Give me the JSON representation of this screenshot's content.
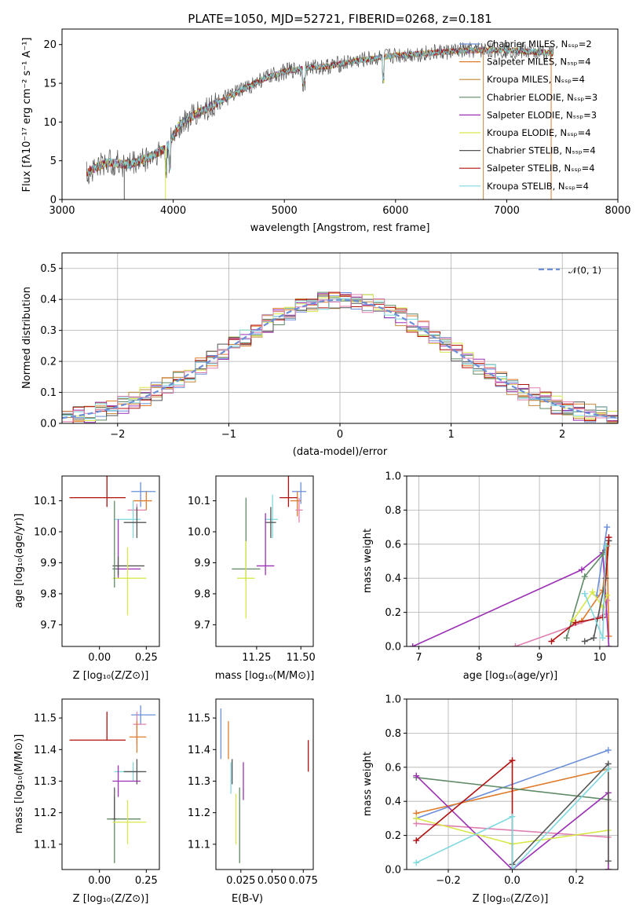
{
  "palette": [
    "#6a8fd8",
    "#e07b2a",
    "#c2873a",
    "#5f8a66",
    "#9b30b4",
    "#d8e84a",
    "#555555",
    "#b01010",
    "#7fd8e0",
    "#e080b0"
  ],
  "chart_data": [
    {
      "id": "spectrum",
      "type": "line",
      "title": "PLATE=1050, MJD=52721, FIBERID=0268, z=0.181",
      "xlabel": "wavelength [Angstrom, rest frame]",
      "ylabel": "Flux [fλ10⁻¹⁷ erg cm⁻² s⁻¹ A⁻¹]",
      "xlim": [
        3000,
        8000
      ],
      "ylim": [
        0,
        22
      ],
      "xticks": [
        "3000",
        "4000",
        "5000",
        "6000",
        "7000",
        "8000"
      ],
      "yticks": [
        "0",
        "5",
        "10",
        "15",
        "20"
      ],
      "legend_position": "top-right",
      "grid": false,
      "continuum": {
        "x": [
          3220,
          3400,
          3600,
          3800,
          3950,
          4050,
          4200,
          4400,
          4600,
          4800,
          5000,
          5200,
          5400,
          5600,
          5800,
          6000,
          6200,
          6400,
          6600,
          6800,
          7000,
          7200,
          7400
        ],
        "y": [
          3.5,
          4.8,
          4.5,
          5.5,
          6.8,
          9.5,
          11,
          12.5,
          14,
          15.5,
          16.5,
          17,
          17.2,
          17.8,
          18.2,
          18.6,
          18.8,
          19,
          19.2,
          19.3,
          19.3,
          19.1,
          18.9
        ]
      },
      "series": [
        {
          "name": "Chabrier MILES, Nₛₛₚ=2",
          "color_index": 0
        },
        {
          "name": "Salpeter MILES, Nₛₛₚ=4",
          "color_index": 1
        },
        {
          "name": "Kroupa MILES, Nₛₛₚ=4",
          "color_index": 2
        },
        {
          "name": "Chabrier ELODIE, Nₛₛₚ=3",
          "color_index": 3
        },
        {
          "name": "Salpeter ELODIE, Nₛₛₚ=3",
          "color_index": 4
        },
        {
          "name": "Kroupa ELODIE, Nₛₛₚ=4",
          "color_index": 5
        },
        {
          "name": "Chabrier STELIB, Nₛₛₚ=4",
          "color_index": 6
        },
        {
          "name": "Salpeter STELIB, Nₛₛₚ=4",
          "color_index": 7
        },
        {
          "name": "Kroupa STELIB, Nₛₛₚ=4",
          "color_index": 8
        }
      ]
    },
    {
      "id": "residuals",
      "type": "line",
      "xlabel": "(data-model)/error",
      "ylabel": "Normed distribution",
      "xlim": [
        -2.5,
        2.5
      ],
      "ylim": [
        0,
        0.55
      ],
      "xticks": [
        "−2",
        "−1",
        "0",
        "1",
        "2"
      ],
      "yticks": [
        "0.0",
        "0.1",
        "0.2",
        "0.3",
        "0.4",
        "0.5"
      ],
      "grid": true,
      "legend_position": "top-right",
      "legend": "𝒩(0, 1)"
    },
    {
      "id": "age-vs-z",
      "type": "scatter",
      "xlabel": "Z [log₁₀(Z/Z⊙)]",
      "ylabel": "age  [log₁₀(age/yr)]",
      "xlim": [
        -0.2,
        0.32
      ],
      "ylim": [
        9.63,
        10.18
      ],
      "xticks": [
        "0.00",
        "0.25"
      ],
      "yticks": [
        "9.7",
        "9.8",
        "9.9",
        "10.0",
        "10.1"
      ],
      "points": [
        {
          "x": 0.22,
          "y": 10.13,
          "xerr": [
            0.05,
            0.08
          ],
          "yerr": [
            0.05,
            0.03
          ],
          "c": 0
        },
        {
          "x": 0.25,
          "y": 10.1,
          "xerr": [
            0.07,
            0.03
          ],
          "yerr": [
            0.03,
            0.03
          ],
          "c": 1
        },
        {
          "x": 0.2,
          "y": 10.07,
          "xerr": [
            0.05,
            0.05
          ],
          "yerr": [
            0.02,
            0.02
          ],
          "c": 9
        },
        {
          "x": 0.18,
          "y": 10.04,
          "xerr": [
            0.1,
            0.04
          ],
          "yerr": [
            0.06,
            0.06
          ],
          "c": 8
        },
        {
          "x": 0.2,
          "y": 10.03,
          "xerr": [
            0.07,
            0.05
          ],
          "yerr": [
            0.05,
            0.05
          ],
          "c": 6
        },
        {
          "x": 0.04,
          "y": 10.11,
          "xerr": [
            0.2,
            0.1
          ],
          "yerr": [
            0.03,
            0.14
          ],
          "c": 7
        },
        {
          "x": 0.1,
          "y": 9.88,
          "xerr": [
            0.03,
            0.12
          ],
          "yerr": [
            0.03,
            0.16
          ],
          "c": 4
        },
        {
          "x": 0.1,
          "y": 9.89,
          "xerr": [
            0.03,
            0.14
          ],
          "yerr": [
            0.03,
            0.03
          ],
          "c": 6
        },
        {
          "x": 0.15,
          "y": 9.85,
          "xerr": [
            0.08,
            0.1
          ],
          "yerr": [
            0.12,
            0.1
          ],
          "c": 5
        },
        {
          "x": 0.08,
          "y": 9.88,
          "xerr": [
            0.01,
            0.01
          ],
          "yerr": [
            0.06,
            0.22
          ],
          "c": 3
        }
      ]
    },
    {
      "id": "age-vs-mass",
      "type": "scatter",
      "xlabel": "mass [log₁₀(M/M⊙)]",
      "ylabel": "",
      "xlim": [
        11.02,
        11.57
      ],
      "ylim": [
        9.63,
        10.18
      ],
      "xticks": [
        "11.25",
        "11.50"
      ],
      "yticks": [
        "9.7",
        "9.8",
        "9.9",
        "10.0",
        "10.1"
      ],
      "points": [
        {
          "x": 11.5,
          "y": 10.13,
          "xerr": [
            0.05,
            0.03
          ],
          "yerr": [
            0.04,
            0.03
          ],
          "c": 0
        },
        {
          "x": 11.48,
          "y": 10.1,
          "xerr": [
            0.04,
            0.02
          ],
          "yerr": [
            0.05,
            0.03
          ],
          "c": 1
        },
        {
          "x": 11.49,
          "y": 10.07,
          "xerr": [
            0.02,
            0.02
          ],
          "yerr": [
            0.04,
            0.04
          ],
          "c": 9
        },
        {
          "x": 11.34,
          "y": 10.04,
          "xerr": [
            0.04,
            0.03
          ],
          "yerr": [
            0.06,
            0.08
          ],
          "c": 8
        },
        {
          "x": 11.33,
          "y": 10.03,
          "xerr": [
            0.03,
            0.03
          ],
          "yerr": [
            0.05,
            0.05
          ],
          "c": 6
        },
        {
          "x": 11.43,
          "y": 10.11,
          "xerr": [
            0.05,
            0.05
          ],
          "yerr": [
            0.03,
            0.14
          ],
          "c": 7
        },
        {
          "x": 11.3,
          "y": 9.89,
          "xerr": [
            0.05,
            0.05
          ],
          "yerr": [
            0.03,
            0.17
          ],
          "c": 4
        },
        {
          "x": 11.19,
          "y": 9.88,
          "xerr": [
            0.08,
            0.08
          ],
          "yerr": [
            0.04,
            0.23
          ],
          "c": 3
        },
        {
          "x": 11.19,
          "y": 9.85,
          "xerr": [
            0.05,
            0.05
          ],
          "yerr": [
            0.13,
            0.12
          ],
          "c": 5
        }
      ]
    },
    {
      "id": "massweight-vs-age",
      "type": "line",
      "xlabel": "age  [log₁₀(age/yr)]",
      "ylabel": "mass weight",
      "xlim": [
        6.8,
        10.3
      ],
      "ylim": [
        0,
        1
      ],
      "xticks": [
        "7",
        "8",
        "9",
        "10"
      ],
      "yticks": [
        "0.0",
        "0.2",
        "0.4",
        "0.6",
        "0.8",
        "1.0"
      ],
      "grid": true,
      "series": [
        {
          "c": 0,
          "x": [
            9.95,
            10.12
          ],
          "y": [
            0.3,
            0.7
          ]
        },
        {
          "c": 1,
          "x": [
            9.7,
            10.05,
            10.12,
            10.15
          ],
          "y": [
            0.15,
            0.33,
            0.59,
            0.06
          ]
        },
        {
          "c": 9,
          "x": [
            8.6,
            10.1,
            10.12
          ],
          "y": [
            0.0,
            0.19,
            0.27
          ]
        },
        {
          "c": 4,
          "x": [
            6.9,
            9.7,
            10.05,
            10.15
          ],
          "y": [
            0.0,
            0.45,
            0.55,
            0.0
          ]
        },
        {
          "c": 3,
          "x": [
            9.45,
            9.75,
            10.05,
            10.15
          ],
          "y": [
            0.05,
            0.41,
            0.54,
            0.62
          ]
        },
        {
          "c": 5,
          "x": [
            9.55,
            9.88,
            10.05,
            10.12
          ],
          "y": [
            0.15,
            0.32,
            0.23,
            0.3
          ]
        },
        {
          "c": 6,
          "x": [
            9.75,
            9.9,
            10.1,
            10.15
          ],
          "y": [
            0.03,
            0.05,
            0.4,
            0.62
          ]
        },
        {
          "c": 7,
          "x": [
            9.2,
            9.6,
            10.05,
            10.15
          ],
          "y": [
            0.03,
            0.14,
            0.17,
            0.64
          ]
        },
        {
          "c": 8,
          "x": [
            9.75,
            10.05,
            10.1
          ],
          "y": [
            0.31,
            0.05,
            0.59
          ]
        }
      ]
    },
    {
      "id": "mass-vs-z",
      "type": "scatter",
      "xlabel": "Z [log₁₀(Z/Z⊙)]",
      "ylabel": "mass [log₁₀(M/M⊙)]",
      "xlim": [
        -0.2,
        0.32
      ],
      "ylim": [
        11.02,
        11.56
      ],
      "xticks": [
        "0.00",
        "0.25"
      ],
      "yticks": [
        "11.1",
        "11.2",
        "11.3",
        "11.4",
        "11.5"
      ],
      "points": [
        {
          "x": 0.22,
          "y": 11.51,
          "xerr": [
            0.05,
            0.08
          ],
          "yerr": [
            0.03,
            0.03
          ],
          "c": 0
        },
        {
          "x": 0.2,
          "y": 11.48,
          "xerr": [
            0.02,
            0.05
          ],
          "yerr": [
            0.06,
            0.04
          ],
          "c": 9
        },
        {
          "x": 0.2,
          "y": 11.44,
          "xerr": [
            0.04,
            0.05
          ],
          "yerr": [
            0.05,
            0.05
          ],
          "c": 1
        },
        {
          "x": 0.04,
          "y": 11.43,
          "xerr": [
            0.2,
            0.1
          ],
          "yerr": [
            0.0,
            0.09
          ],
          "c": 7
        },
        {
          "x": 0.18,
          "y": 11.33,
          "xerr": [
            0.1,
            0.04
          ],
          "yerr": [
            0.03,
            0.03
          ],
          "c": 8
        },
        {
          "x": 0.2,
          "y": 11.33,
          "xerr": [
            0.07,
            0.05
          ],
          "yerr": [
            0.04,
            0.04
          ],
          "c": 6
        },
        {
          "x": 0.1,
          "y": 11.3,
          "xerr": [
            0.03,
            0.12
          ],
          "yerr": [
            0.05,
            0.05
          ],
          "c": 4
        },
        {
          "x": 0.08,
          "y": 11.18,
          "xerr": [
            0.04,
            0.14
          ],
          "yerr": [
            0.14,
            0.07
          ],
          "c": 3
        },
        {
          "x": 0.15,
          "y": 11.17,
          "xerr": [
            0.08,
            0.1
          ],
          "yerr": [
            0.07,
            0.07
          ],
          "c": 5
        },
        {
          "x": 0.08,
          "y": 11.18,
          "xerr": [
            0.01,
            0.01
          ],
          "yerr": [
            0.0,
            0.1
          ],
          "c": 6
        }
      ]
    },
    {
      "id": "mass-vs-ebv",
      "type": "scatter",
      "xlabel": "E(B-V)",
      "ylabel": "",
      "xlim": [
        0.005,
        0.083
      ],
      "ylim": [
        11.02,
        11.56
      ],
      "xticks": [
        "0.025",
        "0.050",
        "0.075"
      ],
      "yticks": [
        "11.1",
        "11.2",
        "11.3",
        "11.4",
        "11.5"
      ],
      "points": [
        {
          "x": 0.009,
          "y": 11.45,
          "xerr": [
            0,
            0
          ],
          "yerr": [
            0.08,
            0.08
          ],
          "c": 0
        },
        {
          "x": 0.015,
          "y": 11.43,
          "xerr": [
            0,
            0
          ],
          "yerr": [
            0.06,
            0.06
          ],
          "c": 1
        },
        {
          "x": 0.018,
          "y": 11.33,
          "xerr": [
            0,
            0
          ],
          "yerr": [
            0.04,
            0.04
          ],
          "c": 6
        },
        {
          "x": 0.017,
          "y": 11.31,
          "xerr": [
            0,
            0
          ],
          "yerr": [
            0.05,
            0.05
          ],
          "c": 8
        },
        {
          "x": 0.027,
          "y": 11.3,
          "xerr": [
            0,
            0
          ],
          "yerr": [
            0.06,
            0.06
          ],
          "c": 4
        },
        {
          "x": 0.021,
          "y": 11.18,
          "xerr": [
            0,
            0
          ],
          "yerr": [
            0.08,
            0.08
          ],
          "c": 5
        },
        {
          "x": 0.024,
          "y": 11.16,
          "xerr": [
            0,
            0
          ],
          "yerr": [
            0.12,
            0.12
          ],
          "c": 3
        },
        {
          "x": 0.079,
          "y": 11.38,
          "xerr": [
            0,
            0
          ],
          "yerr": [
            0.05,
            0.05
          ],
          "c": 7
        }
      ]
    },
    {
      "id": "massweight-vs-z",
      "type": "line",
      "xlabel": "Z [log₁₀(Z/Z⊙)]",
      "ylabel": "mass weight",
      "xlim": [
        -0.33,
        0.33
      ],
      "ylim": [
        0,
        1
      ],
      "xticks": [
        "−0.2",
        "0.0",
        "0.2"
      ],
      "yticks": [
        "0.0",
        "0.2",
        "0.4",
        "0.6",
        "0.8",
        "1.0"
      ],
      "grid": true,
      "series": [
        {
          "c": 0,
          "x": [
            -0.3,
            0.3
          ],
          "y": [
            0.3,
            0.7
          ]
        },
        {
          "c": 1,
          "x": [
            -0.3,
            0.3,
            0.3
          ],
          "y": [
            0.33,
            0.59,
            0.0
          ]
        },
        {
          "c": 9,
          "x": [
            -0.3,
            0.3
          ],
          "y": [
            0.27,
            0.19
          ]
        },
        {
          "c": 3,
          "x": [
            -0.3,
            0.3
          ],
          "y": [
            0.54,
            0.41
          ]
        },
        {
          "c": 4,
          "x": [
            -0.3,
            0.0,
            0.3,
            0.3
          ],
          "y": [
            0.55,
            0.0,
            0.45,
            0.0
          ]
        },
        {
          "c": 5,
          "x": [
            -0.3,
            0.0,
            0.3
          ],
          "y": [
            0.3,
            0.15,
            0.23
          ]
        },
        {
          "c": 6,
          "x": [
            0.0,
            0.3,
            0.3
          ],
          "y": [
            0.03,
            0.62,
            0.05
          ]
        },
        {
          "c": 7,
          "x": [
            -0.3,
            0.0,
            0.0
          ],
          "y": [
            0.17,
            0.64,
            0.0
          ]
        },
        {
          "c": 8,
          "x": [
            -0.3,
            0.0,
            0.0,
            0.3
          ],
          "y": [
            0.04,
            0.31,
            0.0,
            0.59
          ]
        }
      ]
    }
  ]
}
